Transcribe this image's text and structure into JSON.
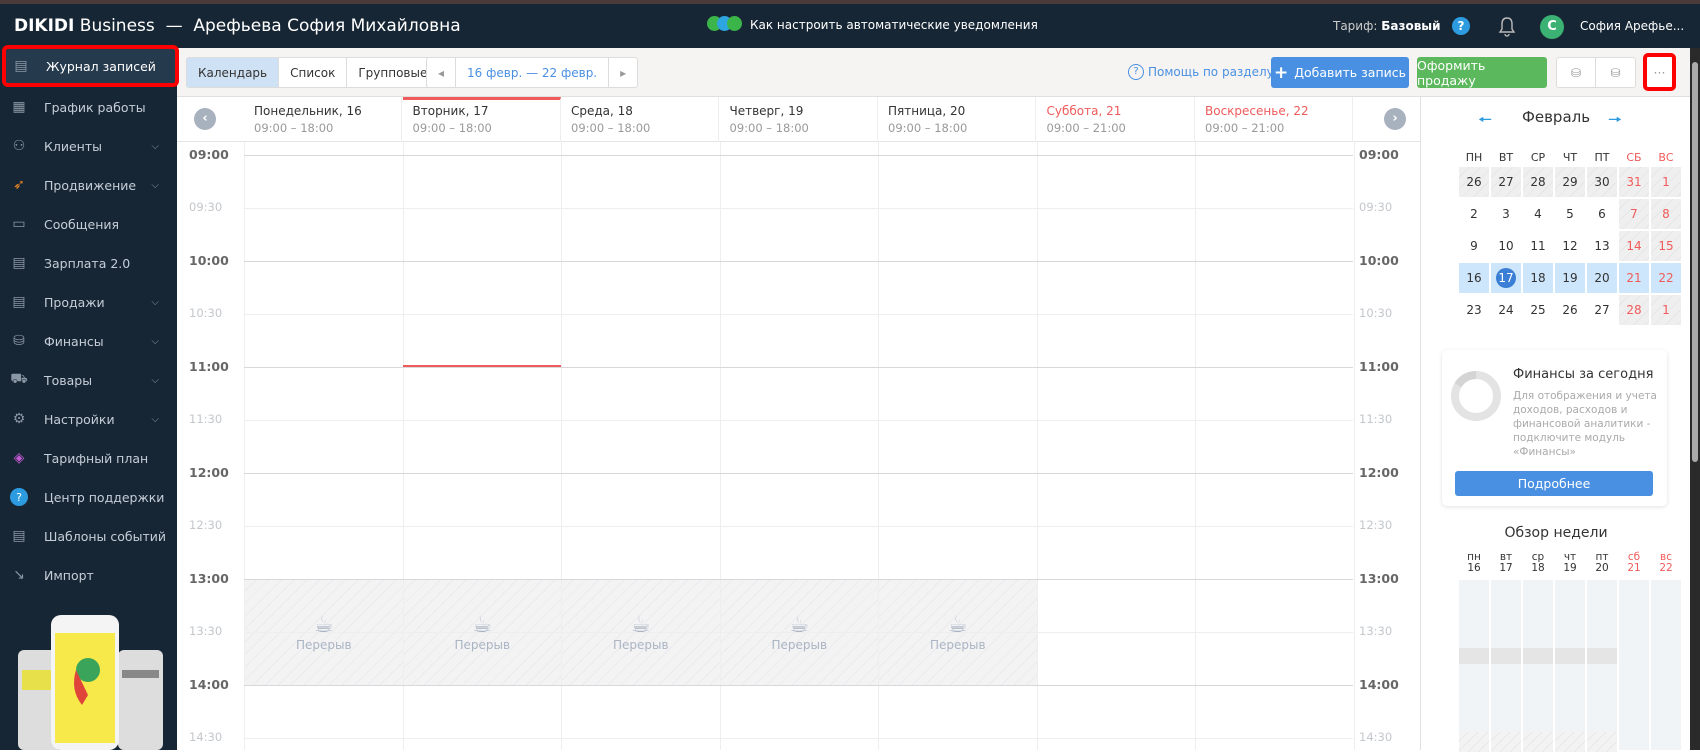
{
  "header": {
    "brand_bold": "DIKIDI",
    "brand_rest": " Business",
    "separator": "—",
    "owner": "Арефьева София Михайловна",
    "notification": "Как настроить автоматические уведомления",
    "tariff_label": "Тариф:",
    "tariff_value": "Базовый",
    "help": "?",
    "avatar_letter": "С",
    "user_name": "София Арефье..."
  },
  "sidebar": {
    "items": [
      {
        "label": "Журнал записей",
        "icon": "journal-icon",
        "active": true
      },
      {
        "label": "График работы",
        "icon": "calendar-icon"
      },
      {
        "label": "Клиенты",
        "icon": "users-icon",
        "chevron": true
      },
      {
        "label": "Продвижение",
        "icon": "rocket-icon",
        "chevron": true
      },
      {
        "label": "Сообщения",
        "icon": "messages-icon"
      },
      {
        "label": "Зарплата 2.0",
        "icon": "book-icon"
      },
      {
        "label": "Продажи",
        "icon": "sales-icon",
        "chevron": true
      },
      {
        "label": "Финансы",
        "icon": "coins-icon",
        "chevron": true
      },
      {
        "label": "Товары",
        "icon": "cart-icon",
        "chevron": true
      },
      {
        "label": "Настройки",
        "icon": "gear-icon",
        "chevron": true
      },
      {
        "label": "Тарифный план",
        "icon": "layers-icon"
      },
      {
        "label": "Центр поддержки",
        "icon": "help-icon"
      },
      {
        "label": "Шаблоны событий",
        "icon": "template-icon"
      },
      {
        "label": "Импорт",
        "icon": "import-icon"
      }
    ]
  },
  "toolbar": {
    "views": [
      "Календарь",
      "Список",
      "Групповые"
    ],
    "active_view": 0,
    "date_range": "16 февр. — 22 февр.",
    "help_link": "Помощь по разделу",
    "add_button": "Добавить запись",
    "sale_button": "Оформить продажу",
    "more": "···"
  },
  "days": [
    {
      "name": "Понедельник, 16",
      "hours": "09:00 – 18:00"
    },
    {
      "name": "Вторник, 17",
      "hours": "09:00 – 18:00",
      "today": true
    },
    {
      "name": "Среда, 18",
      "hours": "09:00 – 18:00"
    },
    {
      "name": "Четверг, 19",
      "hours": "09:00 – 18:00"
    },
    {
      "name": "Пятница, 20",
      "hours": "09:00 – 18:00"
    },
    {
      "name": "Суббота, 21",
      "hours": "09:00 – 21:00",
      "weekend": true
    },
    {
      "name": "Воскресенье, 22",
      "hours": "09:00 – 21:00",
      "weekend": true
    }
  ],
  "times": [
    "09:00",
    "09:30",
    "10:00",
    "10:30",
    "11:00",
    "11:30",
    "12:00",
    "12:30",
    "13:00",
    "13:30",
    "14:00",
    "14:30"
  ],
  "break": {
    "label": "Перерыв",
    "start": "13:00",
    "end": "14:00",
    "days": [
      0,
      1,
      2,
      3,
      4
    ]
  },
  "current_time": "11:00",
  "mini_calendar": {
    "month": "Февраль",
    "weekdays": [
      "ПН",
      "ВТ",
      "СР",
      "ЧТ",
      "ПТ",
      "СБ",
      "ВС"
    ],
    "weeks": [
      [
        "26",
        "27",
        "28",
        "29",
        "30",
        "31",
        "1"
      ],
      [
        "2",
        "3",
        "4",
        "5",
        "6",
        "7",
        "8"
      ],
      [
        "9",
        "10",
        "11",
        "12",
        "13",
        "14",
        "15"
      ],
      [
        "16",
        "17",
        "18",
        "19",
        "20",
        "21",
        "22"
      ],
      [
        "23",
        "24",
        "25",
        "26",
        "27",
        "28",
        "1"
      ]
    ],
    "selected_week": 3,
    "today": "17"
  },
  "finance": {
    "title": "Финансы за сегодня",
    "text": "Для отображения и учета доходов, расходов и финансовой аналитики - подключите модуль «Финансы»",
    "button": "Подробнее"
  },
  "week_overview": {
    "title": "Обзор недели",
    "days": [
      {
        "d": "пн",
        "n": "16"
      },
      {
        "d": "вт",
        "n": "17"
      },
      {
        "d": "ср",
        "n": "18"
      },
      {
        "d": "чт",
        "n": "19"
      },
      {
        "d": "пт",
        "n": "20"
      },
      {
        "d": "сб",
        "n": "21"
      },
      {
        "d": "вс",
        "n": "22"
      }
    ]
  },
  "colors": {
    "accent": "#4a90e2",
    "sale": "#5cb85c",
    "weekend": "#f05a5a",
    "sidebar": "#172634"
  }
}
